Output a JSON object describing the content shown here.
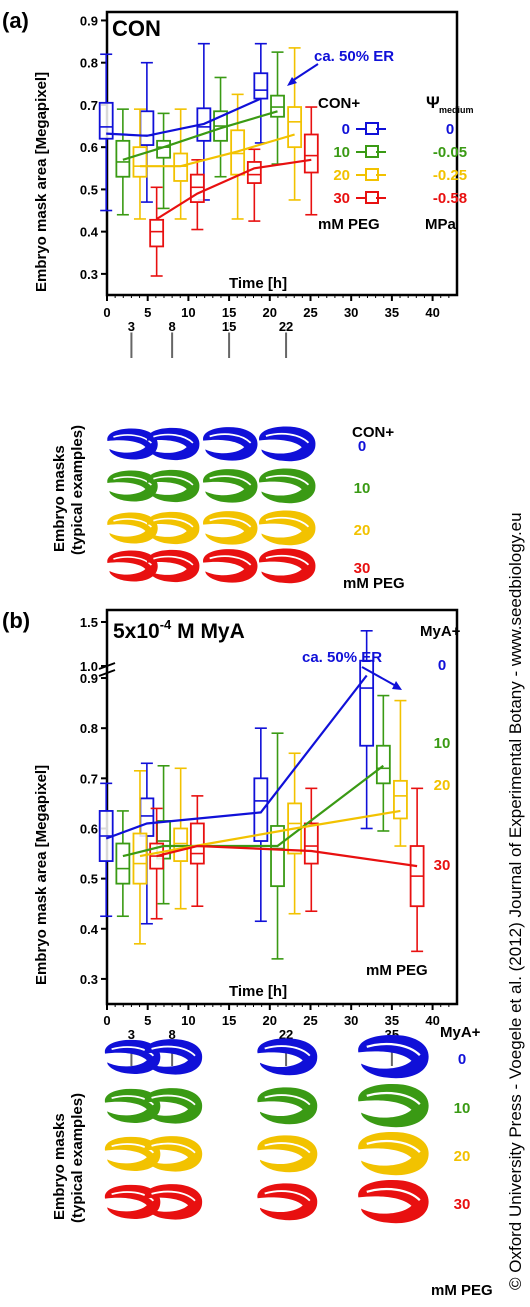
{
  "side_text": "© Oxford University Press - Voegele et al. (2012) Journal of Experimental Botany - www.seedbiology.eu",
  "colors": {
    "0": "#1010d8",
    "10": "#3a9a14",
    "20": "#f2c200",
    "30": "#e81010",
    "axis": "#000000"
  },
  "panels": [
    {
      "letter": "(a)",
      "title": "CON",
      "annotation": "ca. 50% ER",
      "ylabel": "Embryo mask area [Megapixel]",
      "xlabel": "Time [h]",
      "xticks": [
        "0",
        "5",
        "10",
        "15",
        "20",
        "25",
        "30",
        "35",
        "40"
      ],
      "yticks": [
        "0.3",
        "0.4",
        "0.5",
        "0.6",
        "0.7",
        "0.8",
        "0.9"
      ],
      "sample_times": [
        "3",
        "8",
        "15",
        "22"
      ],
      "legend": {
        "group_header": "CON+",
        "psi_symbol": "Ψ",
        "psi_subscript": "medium",
        "levels": [
          "0",
          "10",
          "20",
          "30"
        ],
        "psi_values": [
          "0",
          "-0.05",
          "-0.25",
          "-0.58"
        ],
        "unit_left": "mM PEG",
        "unit_right": "MPa"
      },
      "masks_label_1": "Embryo masks",
      "masks_label_2": "(typical examples)",
      "masks_header": "CON+",
      "masks_levels": [
        "0",
        "10",
        "20",
        "30"
      ],
      "masks_unit": "mM PEG"
    },
    {
      "letter": "(b)",
      "title_main": "5x10",
      "title_sup": "-4",
      "title_rest": " M MyA",
      "annotation": "ca. 50% ER",
      "ylabel": "Embryo mask area [Megapixel]",
      "xlabel": "Time [h]",
      "xticks": [
        "0",
        "5",
        "10",
        "15",
        "20",
        "25",
        "30",
        "35",
        "40"
      ],
      "yticks": [
        "0.3",
        "0.4",
        "0.5",
        "0.6",
        "0.7",
        "0.8",
        "0.9"
      ],
      "yticks_break": [
        "1.0",
        "1.5"
      ],
      "sample_times": [
        "3",
        "8",
        "22",
        "35"
      ],
      "legend": {
        "group_header": "MyA+",
        "levels": [
          "0",
          "10",
          "20",
          "30"
        ],
        "unit": "mM PEG"
      },
      "masks_label_1": "Embryo masks",
      "masks_label_2": "(typical examples)",
      "masks_header": "MyA+",
      "masks_levels": [
        "0",
        "10",
        "20",
        "30"
      ],
      "masks_unit": "mM PEG"
    }
  ],
  "chart_data": [
    {
      "type": "box",
      "xlabel": "Time [h]",
      "ylabel": "Embryo mask area [Megapixel]",
      "xlim": [
        0,
        43
      ],
      "ylim": [
        0.25,
        0.92
      ],
      "series": [
        {
          "name": "0",
          "x": [
            3,
            8,
            15,
            22
          ],
          "mean": [
            0.632,
            0.627,
            0.655,
            0.715
          ],
          "boxes": [
            [
              0.45,
              0.62,
              0.648,
              0.705,
              0.82
            ],
            [
              0.47,
              0.605,
              0.628,
              0.685,
              0.8
            ],
            [
              0.475,
              0.615,
              0.648,
              0.692,
              0.845
            ],
            [
              0.61,
              0.715,
              0.735,
              0.775,
              0.845
            ]
          ]
        },
        {
          "name": "10",
          "x": [
            3,
            8,
            15,
            22
          ],
          "mean": [
            0.57,
            0.6,
            0.645,
            0.685
          ],
          "boxes": [
            [
              0.44,
              0.53,
              0.565,
              0.615,
              0.69
            ],
            [
              0.455,
              0.575,
              0.6,
              0.615,
              0.68
            ],
            [
              0.53,
              0.615,
              0.65,
              0.685,
              0.765
            ],
            [
              0.56,
              0.672,
              0.695,
              0.722,
              0.825
            ]
          ]
        },
        {
          "name": "20",
          "x": [
            3,
            8,
            15,
            22
          ],
          "mean": [
            0.555,
            0.555,
            0.59,
            0.63
          ],
          "boxes": [
            [
              0.43,
              0.53,
              0.555,
              0.6,
              0.69
            ],
            [
              0.43,
              0.52,
              0.555,
              0.585,
              0.69
            ],
            [
              0.43,
              0.535,
              0.585,
              0.64,
              0.725
            ],
            [
              0.475,
              0.6,
              0.66,
              0.695,
              0.835
            ]
          ]
        },
        {
          "name": "30",
          "x": [
            3,
            8,
            15,
            22
          ],
          "mean": [
            0.43,
            0.49,
            0.55,
            0.57
          ],
          "boxes": [
            [
              0.295,
              0.365,
              0.4,
              0.428,
              0.505
            ],
            [
              0.405,
              0.47,
              0.505,
              0.535,
              0.57
            ],
            [
              0.425,
              0.515,
              0.535,
              0.565,
              0.595
            ],
            [
              0.44,
              0.54,
              0.58,
              0.63,
              0.695
            ]
          ]
        }
      ]
    },
    {
      "type": "box",
      "xlabel": "Time [h]",
      "ylabel": "Embryo mask area [Megapixel]",
      "xlim": [
        0,
        43
      ],
      "ylim": [
        0.25,
        0.92
      ],
      "y_break": [
        1.0,
        1.5
      ],
      "series": [
        {
          "name": "0",
          "x": [
            3,
            8,
            22,
            35
          ],
          "mean": [
            0.58,
            0.61,
            0.632,
            0.905
          ],
          "boxes": [
            [
              0.425,
              0.535,
              0.585,
              0.635,
              0.69
            ],
            [
              0.41,
              0.585,
              0.625,
              0.66,
              0.73
            ],
            [
              0.415,
              0.575,
              0.655,
              0.7,
              0.8
            ],
            [
              0.6,
              0.765,
              0.88,
              1.06,
              1.4
            ]
          ]
        },
        {
          "name": "10",
          "x": [
            3,
            8,
            22,
            35
          ],
          "mean": [
            0.545,
            0.565,
            0.565,
            0.725
          ],
          "boxes": [
            [
              0.425,
              0.49,
              0.52,
              0.57,
              0.635
            ],
            [
              0.45,
              0.54,
              0.575,
              0.615,
              0.725
            ],
            [
              0.34,
              0.485,
              0.56,
              0.605,
              0.79
            ],
            [
              0.595,
              0.69,
              0.72,
              0.765,
              0.865
            ]
          ]
        },
        {
          "name": "20",
          "x": [
            3,
            8,
            22,
            35
          ],
          "mean": [
            0.545,
            0.56,
            0.6,
            0.635
          ],
          "boxes": [
            [
              0.37,
              0.49,
              0.53,
              0.59,
              0.715
            ],
            [
              0.44,
              0.535,
              0.57,
              0.6,
              0.72
            ],
            [
              0.43,
              0.55,
              0.61,
              0.65,
              0.75
            ],
            [
              0.565,
              0.62,
              0.665,
              0.695,
              0.855
            ]
          ]
        },
        {
          "name": "30",
          "x": [
            3,
            8,
            22,
            35
          ],
          "mean": [
            0.545,
            0.565,
            0.555,
            0.525
          ],
          "boxes": [
            [
              0.42,
              0.52,
              0.545,
              0.57,
              0.64
            ],
            [
              0.445,
              0.53,
              0.55,
              0.61,
              0.665
            ],
            [
              0.435,
              0.53,
              0.565,
              0.61,
              0.68
            ],
            [
              0.355,
              0.445,
              0.505,
              0.565,
              0.68
            ]
          ]
        }
      ]
    }
  ]
}
